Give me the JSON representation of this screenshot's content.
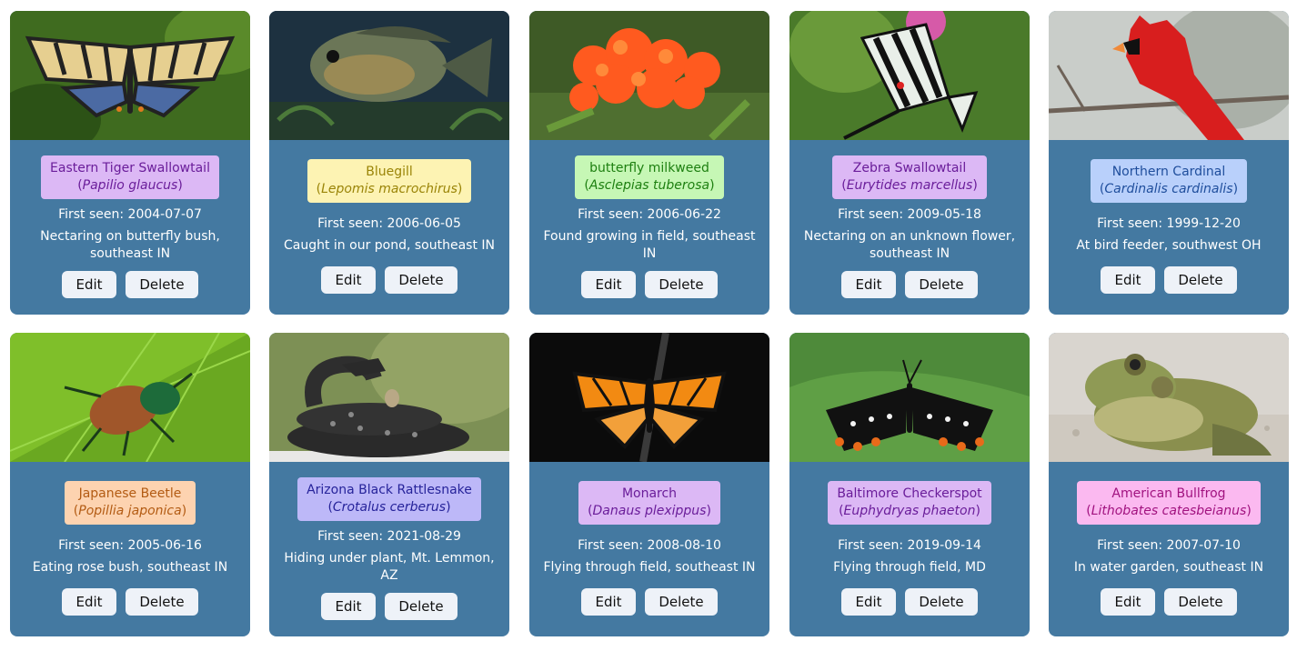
{
  "cards": [
    {
      "common": "Eastern Tiger Swallowtail",
      "scientific": "Papilio glaucus",
      "first_seen_label": "First seen: ",
      "first_seen": "2004-07-07",
      "note": "Nectaring on butterfly bush, southeast IN",
      "edit_label": "Edit",
      "delete_label": "Delete",
      "label_bg": "#dcb8f5",
      "label_fg": "#6a1d9a",
      "photo": "tiger-swallowtail-photo"
    },
    {
      "common": "Bluegill",
      "scientific": "Lepomis macrochirus",
      "first_seen_label": "First seen: ",
      "first_seen": "2006-06-05",
      "note": "Caught in our pond, southeast IN",
      "edit_label": "Edit",
      "delete_label": "Delete",
      "label_bg": "#fdf3b3",
      "label_fg": "#9a8407",
      "photo": "bluegill-photo"
    },
    {
      "common": "butterfly milkweed",
      "scientific": "Asclepias tuberosa",
      "first_seen_label": "First seen: ",
      "first_seen": "2006-06-22",
      "note": "Found growing in field, southeast IN",
      "edit_label": "Edit",
      "delete_label": "Delete",
      "label_bg": "#c6f7b5",
      "label_fg": "#1d7f10",
      "photo": "milkweed-photo"
    },
    {
      "common": "Zebra Swallowtail",
      "scientific": "Eurytides marcellus",
      "first_seen_label": "First seen: ",
      "first_seen": "2009-05-18",
      "note": "Nectaring on an unknown flower, southeast IN",
      "edit_label": "Edit",
      "delete_label": "Delete",
      "label_bg": "#dcb8f5",
      "label_fg": "#6a1d9a",
      "photo": "zebra-swallowtail-photo"
    },
    {
      "common": "Northern Cardinal",
      "scientific": "Cardinalis cardinalis",
      "first_seen_label": "First seen: ",
      "first_seen": "1999-12-20",
      "note": "At bird feeder, southwest OH",
      "edit_label": "Edit",
      "delete_label": "Delete",
      "label_bg": "#b9d0fb",
      "label_fg": "#1f4e9c",
      "photo": "cardinal-photo"
    },
    {
      "common": "Japanese Beetle",
      "scientific": "Popillia japonica",
      "first_seen_label": "First seen: ",
      "first_seen": "2005-06-16",
      "note": "Eating rose bush, southeast IN",
      "edit_label": "Edit",
      "delete_label": "Delete",
      "label_bg": "#fdd3b0",
      "label_fg": "#b35b13",
      "photo": "japanese-beetle-photo"
    },
    {
      "common": "Arizona Black Rattlesnake",
      "scientific": "Crotalus cerberus",
      "first_seen_label": "First seen: ",
      "first_seen": "2021-08-29",
      "note": "Hiding under plant, Mt. Lemmon, AZ",
      "edit_label": "Edit",
      "delete_label": "Delete",
      "label_bg": "#bdb8f8",
      "label_fg": "#26239a",
      "photo": "rattlesnake-photo"
    },
    {
      "common": "Monarch",
      "scientific": "Danaus plexippus",
      "first_seen_label": "First seen: ",
      "first_seen": "2008-08-10",
      "note": "Flying through field, southeast IN",
      "edit_label": "Edit",
      "delete_label": "Delete",
      "label_bg": "#dcb8f5",
      "label_fg": "#6a1d9a",
      "photo": "monarch-photo"
    },
    {
      "common": "Baltimore Checkerspot",
      "scientific": "Euphydryas phaeton",
      "first_seen_label": "First seen: ",
      "first_seen": "2019-09-14",
      "note": "Flying through field, MD",
      "edit_label": "Edit",
      "delete_label": "Delete",
      "label_bg": "#dcb8f5",
      "label_fg": "#6a1d9a",
      "photo": "checkerspot-photo"
    },
    {
      "common": "American Bullfrog",
      "scientific": "Lithobates catesbeianus",
      "first_seen_label": "First seen: ",
      "first_seen": "2007-07-10",
      "note": "In water garden, southeast IN",
      "edit_label": "Edit",
      "delete_label": "Delete",
      "label_bg": "#fbb9f0",
      "label_fg": "#a1127f",
      "photo": "bullfrog-photo"
    }
  ]
}
